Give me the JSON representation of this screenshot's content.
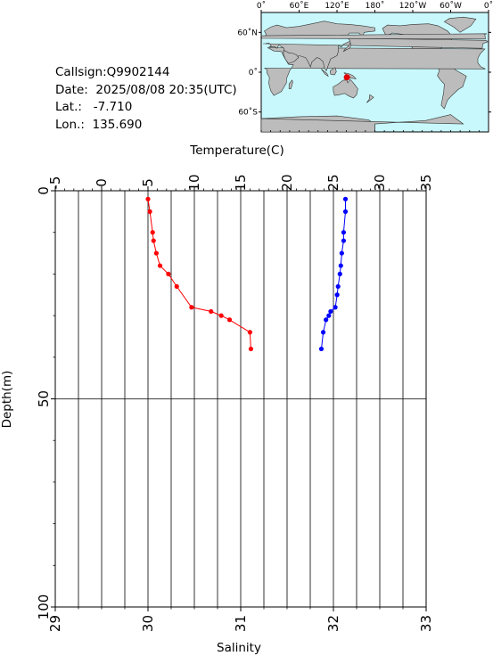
{
  "info": {
    "callsign": "Callsign:Q9902144",
    "date": "Date:  2025/08/08 20:35(UTC)",
    "lat": "Lat.:   -7.710",
    "lon": "Lon.:  135.690"
  },
  "map": {
    "top_ticks": [
      "0˚",
      "60˚E",
      "120˚E",
      "180˚",
      "120˚W",
      "60˚W",
      "0˚"
    ],
    "lat_ticks": [
      "60˚N",
      "0˚",
      "60˚S"
    ],
    "marker": {
      "lon": 135.69,
      "lat": -7.71
    },
    "colors": {
      "ocean": "#c8f8fc",
      "land": "#bcbcbc",
      "marker": "#e00000"
    }
  },
  "chart_data": {
    "type": "line",
    "top_axis": {
      "label": "Temperature(C)",
      "range": [
        -5,
        35
      ],
      "ticks": [
        "-5",
        "0",
        "5",
        "10",
        "15",
        "20",
        "25",
        "30",
        "35"
      ]
    },
    "bottom_axis": {
      "label": "Salinity",
      "range": [
        29,
        33
      ],
      "ticks": [
        "29",
        "30",
        "31",
        "32",
        "33"
      ]
    },
    "left_axis": {
      "label": "Depth(m)",
      "range": [
        0,
        100
      ],
      "inverted": true,
      "ticks": [
        "0",
        "50",
        "100"
      ]
    },
    "grid": true,
    "series": [
      {
        "axis": "top",
        "color": "#ff0000",
        "points": [
          {
            "x": 5.0,
            "depth": 2
          },
          {
            "x": 5.2,
            "depth": 5
          },
          {
            "x": 5.5,
            "depth": 10
          },
          {
            "x": 5.6,
            "depth": 12
          },
          {
            "x": 5.9,
            "depth": 15
          },
          {
            "x": 6.3,
            "depth": 18
          },
          {
            "x": 7.2,
            "depth": 20
          },
          {
            "x": 8.1,
            "depth": 23
          },
          {
            "x": 9.7,
            "depth": 28
          },
          {
            "x": 11.8,
            "depth": 29
          },
          {
            "x": 12.9,
            "depth": 30
          },
          {
            "x": 13.8,
            "depth": 31
          },
          {
            "x": 16.0,
            "depth": 34
          },
          {
            "x": 16.1,
            "depth": 38
          }
        ]
      },
      {
        "axis": "bottom",
        "color": "#0000ff",
        "points": [
          {
            "x": 32.13,
            "depth": 2
          },
          {
            "x": 32.13,
            "depth": 5
          },
          {
            "x": 32.11,
            "depth": 10
          },
          {
            "x": 32.11,
            "depth": 12
          },
          {
            "x": 32.09,
            "depth": 15
          },
          {
            "x": 32.08,
            "depth": 18
          },
          {
            "x": 32.07,
            "depth": 20
          },
          {
            "x": 32.05,
            "depth": 23
          },
          {
            "x": 32.04,
            "depth": 25
          },
          {
            "x": 32.02,
            "depth": 28
          },
          {
            "x": 31.97,
            "depth": 29
          },
          {
            "x": 31.95,
            "depth": 30
          },
          {
            "x": 31.92,
            "depth": 31
          },
          {
            "x": 31.89,
            "depth": 34
          },
          {
            "x": 31.87,
            "depth": 38
          }
        ]
      }
    ]
  }
}
